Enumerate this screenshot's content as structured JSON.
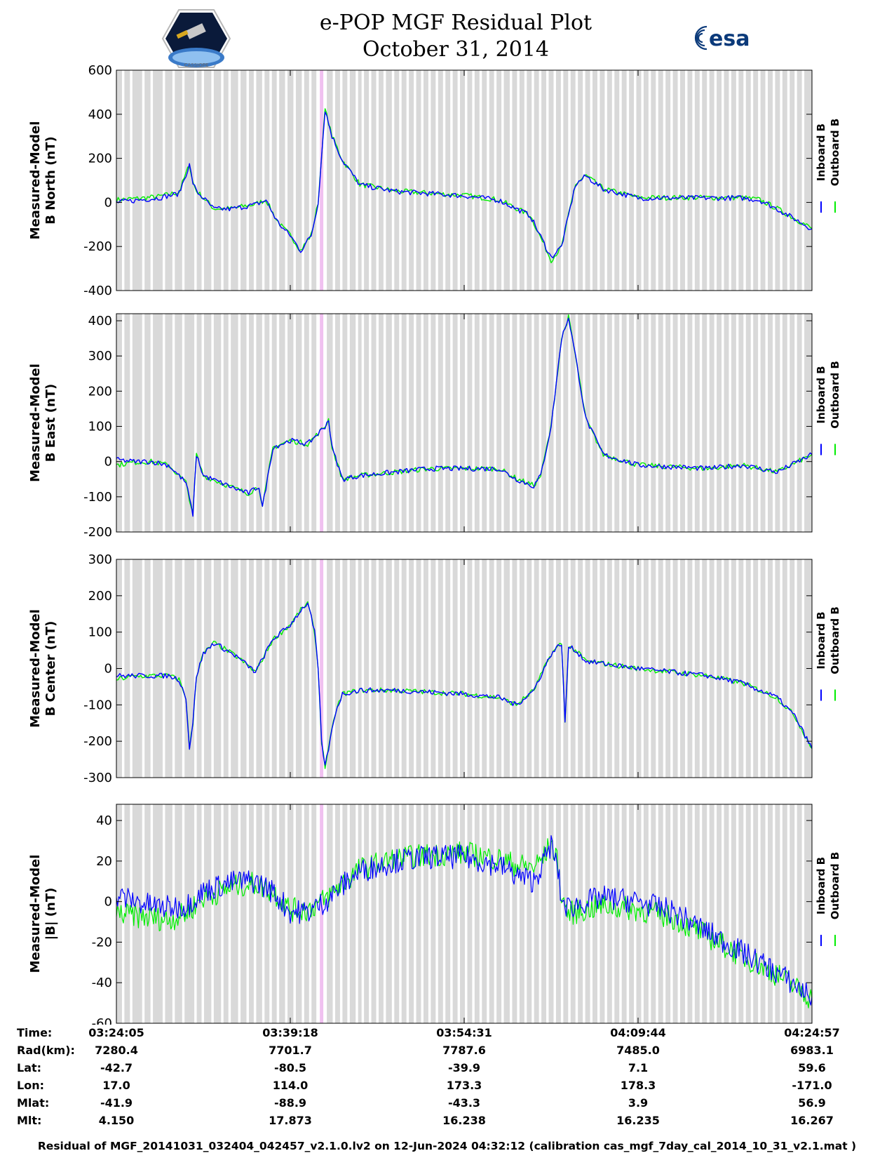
{
  "header": {
    "title": "e-POP MGF Residual Plot",
    "date": "October 31, 2014",
    "logo_left": "CASSIOPE",
    "logo_right": "esa"
  },
  "colors": {
    "inboard": "#0000ff",
    "outboard": "#00ee00",
    "gap_shading": "#d9d9d9",
    "highlight": "#f0c0f0"
  },
  "chart_data": [
    {
      "type": "line",
      "id": "north",
      "ylabel": [
        "Measured-Model",
        "B North (nT)"
      ],
      "ylim": [
        -400,
        600
      ],
      "yticks": [
        -400,
        -200,
        0,
        200,
        400,
        600
      ],
      "legend": [
        "Inboard B",
        "Outboard B"
      ],
      "series": [
        {
          "name": "Inboard B",
          "color": "#0000ff",
          "x": [
            0,
            6,
            12,
            18,
            21,
            22,
            23,
            25,
            28,
            33,
            40,
            43,
            46,
            48,
            50,
            53,
            56,
            57,
            58,
            60,
            62,
            65,
            70,
            80,
            100,
            110,
            119,
            125,
            128,
            132,
            135,
            140,
            150,
            160,
            180,
            185,
            190,
            200
          ],
          "y": [
            0,
            10,
            20,
            40,
            170,
            90,
            50,
            20,
            -30,
            -30,
            -10,
            10,
            -80,
            -120,
            -150,
            -220,
            -150,
            -80,
            0,
            420,
            300,
            190,
            80,
            50,
            30,
            10,
            -60,
            -250,
            -200,
            80,
            120,
            60,
            20,
            20,
            20,
            10,
            -30,
            -120
          ]
        },
        {
          "name": "Outboard B",
          "color": "#00ee00",
          "x": [
            0,
            6,
            12,
            18,
            21,
            22,
            23,
            25,
            28,
            33,
            40,
            43,
            46,
            48,
            50,
            53,
            56,
            57,
            58,
            60,
            62,
            65,
            70,
            80,
            100,
            110,
            119,
            125,
            128,
            132,
            135,
            140,
            150,
            160,
            180,
            185,
            190,
            200
          ],
          "y": [
            12,
            18,
            26,
            46,
            172,
            92,
            52,
            22,
            -28,
            -28,
            -8,
            12,
            -78,
            -118,
            -148,
            -218,
            -148,
            -78,
            2,
            422,
            302,
            192,
            82,
            52,
            32,
            12,
            -58,
            -262,
            -202,
            82,
            122,
            62,
            22,
            22,
            22,
            12,
            -28,
            -118
          ]
        }
      ]
    },
    {
      "type": "line",
      "id": "east",
      "ylabel": [
        "Measured-Model",
        "B East (nT)"
      ],
      "ylim": [
        -200,
        420
      ],
      "yticks": [
        -200,
        -100,
        0,
        100,
        200,
        300,
        400
      ],
      "legend": [
        "Inboard B",
        "Outboard B"
      ],
      "series": [
        {
          "name": "Inboard B",
          "color": "#0000ff",
          "x": [
            0,
            5,
            10,
            15,
            18,
            20,
            22,
            23,
            25,
            30,
            35,
            38,
            41,
            42,
            45,
            50,
            55,
            60,
            61,
            62,
            65,
            70,
            80,
            90,
            100,
            110,
            115,
            120,
            122,
            125,
            128,
            130,
            132,
            135,
            140,
            150,
            170,
            180,
            190,
            200
          ],
          "y": [
            5,
            0,
            0,
            -10,
            -40,
            -60,
            -150,
            20,
            -40,
            -60,
            -80,
            -90,
            -70,
            -130,
            40,
            60,
            50,
            100,
            120,
            40,
            -50,
            -40,
            -30,
            -20,
            -20,
            -20,
            -50,
            -70,
            -40,
            100,
            350,
            410,
            300,
            120,
            20,
            -10,
            -20,
            -10,
            -30,
            20
          ]
        },
        {
          "name": "Outboard B",
          "color": "#00ee00",
          "x": [
            0,
            5,
            10,
            15,
            18,
            20,
            22,
            23,
            25,
            30,
            35,
            38,
            41,
            42,
            45,
            50,
            55,
            60,
            61,
            62,
            65,
            70,
            80,
            90,
            100,
            110,
            115,
            120,
            122,
            125,
            128,
            130,
            132,
            135,
            140,
            150,
            170,
            180,
            190,
            200
          ],
          "y": [
            -10,
            -2,
            0,
            -10,
            -40,
            -60,
            -150,
            20,
            -40,
            -60,
            -80,
            -90,
            -70,
            -130,
            40,
            60,
            50,
            100,
            120,
            40,
            -50,
            -40,
            -30,
            -20,
            -20,
            -20,
            -48,
            -68,
            -40,
            100,
            350,
            410,
            300,
            120,
            20,
            -10,
            -20,
            -10,
            -30,
            20
          ]
        }
      ]
    },
    {
      "type": "line",
      "id": "center",
      "ylabel": [
        "Measured-Model",
        "B Center (nT)"
      ],
      "ylim": [
        -300,
        300
      ],
      "yticks": [
        -300,
        -200,
        -100,
        0,
        100,
        200,
        300
      ],
      "legend": [
        "Inboard B",
        "Outboard B"
      ],
      "series": [
        {
          "name": "Inboard B",
          "color": "#0000ff",
          "x": [
            0,
            5,
            10,
            15,
            18,
            20,
            21,
            22,
            23,
            25,
            28,
            30,
            35,
            40,
            45,
            50,
            53,
            55,
            57,
            58,
            59,
            60,
            61,
            63,
            65,
            70,
            80,
            100,
            110,
            115,
            120,
            125,
            128,
            129,
            130,
            132,
            135,
            150,
            170,
            180,
            190,
            195,
            200
          ],
          "y": [
            -20,
            -20,
            -20,
            -20,
            -30,
            -80,
            -220,
            -150,
            -20,
            40,
            70,
            60,
            30,
            -10,
            80,
            120,
            160,
            180,
            100,
            0,
            -200,
            -270,
            -220,
            -120,
            -70,
            -60,
            -60,
            -70,
            -80,
            -100,
            -60,
            40,
            70,
            -150,
            60,
            50,
            20,
            0,
            -20,
            -40,
            -80,
            -130,
            -220
          ]
        },
        {
          "name": "Outboard B",
          "color": "#00ee00",
          "x": [
            0,
            5,
            10,
            15,
            18,
            20,
            21,
            22,
            23,
            25,
            28,
            30,
            35,
            40,
            45,
            50,
            53,
            55,
            57,
            58,
            59,
            60,
            61,
            63,
            65,
            70,
            80,
            100,
            110,
            115,
            120,
            125,
            128,
            129,
            130,
            132,
            135,
            150,
            170,
            180,
            190,
            195,
            200
          ],
          "y": [
            -30,
            -22,
            -20,
            -20,
            -30,
            -80,
            -220,
            -150,
            -20,
            40,
            70,
            60,
            30,
            -10,
            80,
            120,
            160,
            180,
            100,
            0,
            -200,
            -270,
            -220,
            -120,
            -70,
            -60,
            -60,
            -70,
            -80,
            -100,
            -60,
            40,
            70,
            -150,
            60,
            50,
            20,
            0,
            -20,
            -40,
            -80,
            -130,
            -220
          ]
        }
      ]
    },
    {
      "type": "line",
      "id": "total",
      "ylabel": [
        "Measured-Model",
        "|B| (nT)"
      ],
      "ylim": [
        -60,
        48
      ],
      "yticks": [
        -60,
        -40,
        -20,
        0,
        20,
        40
      ],
      "legend": [
        "Inboard B",
        "Outboard B"
      ],
      "series": [
        {
          "name": "Inboard B",
          "color": "#0000ff",
          "x": [
            0,
            10,
            15,
            20,
            25,
            30,
            35,
            40,
            45,
            50,
            55,
            60,
            65,
            70,
            80,
            90,
            100,
            110,
            115,
            120,
            123,
            125,
            127,
            128,
            130,
            135,
            140,
            150,
            160,
            170,
            180,
            190,
            200
          ],
          "y": [
            3,
            -2,
            -3,
            -2,
            5,
            8,
            10,
            10,
            5,
            -5,
            -5,
            0,
            8,
            15,
            20,
            22,
            22,
            18,
            13,
            10,
            20,
            28,
            15,
            0,
            -3,
            0,
            2,
            0,
            -5,
            -15,
            -25,
            -35,
            -47
          ]
        },
        {
          "name": "Outboard B",
          "color": "#00ee00",
          "x": [
            0,
            10,
            15,
            20,
            25,
            30,
            35,
            40,
            45,
            50,
            55,
            60,
            65,
            70,
            80,
            90,
            100,
            110,
            115,
            120,
            123,
            125,
            127,
            128,
            130,
            135,
            140,
            150,
            160,
            170,
            180,
            190,
            200
          ],
          "y": [
            -6,
            -8,
            -9,
            -6,
            2,
            5,
            8,
            9,
            5,
            -4,
            -4,
            1,
            9,
            16,
            21,
            23,
            24,
            21,
            18,
            17,
            22,
            29,
            18,
            2,
            -6,
            -4,
            -2,
            -4,
            -8,
            -17,
            -27,
            -36,
            -48
          ]
        }
      ]
    }
  ],
  "gap_bands": [
    [
      0,
      1.6
    ],
    [
      2.3,
      3.9
    ],
    [
      4.6,
      7.4
    ],
    [
      8.1,
      9.8
    ],
    [
      10.5,
      13.3
    ],
    [
      14.0,
      16.1
    ],
    [
      16.8,
      18.9
    ],
    [
      19.6,
      22.4
    ],
    [
      23.1,
      24.5
    ],
    [
      25.2,
      27.3
    ],
    [
      28.0,
      30.1
    ],
    [
      30.8,
      32.2
    ],
    [
      32.9,
      35.0
    ],
    [
      35.7,
      37.4
    ],
    [
      38.1,
      39.5
    ],
    [
      40.2,
      41.9
    ],
    [
      42.6,
      44.0
    ],
    [
      44.7,
      46.1
    ],
    [
      46.8,
      48.5
    ],
    [
      49.2,
      50.9
    ],
    [
      51.6,
      53.3
    ],
    [
      54.0,
      55.4
    ],
    [
      56.1,
      57.5
    ],
    [
      60.5,
      62.2
    ],
    [
      62.9,
      64.3
    ],
    [
      65.0,
      66.4
    ],
    [
      67.1,
      68.8
    ],
    [
      69.5,
      70.5
    ],
    [
      71.2,
      72.6
    ],
    [
      73.3,
      74.7
    ],
    [
      75.4,
      76.8
    ],
    [
      77.5,
      79.2
    ],
    [
      79.9,
      81.3
    ],
    [
      82.0,
      83.4
    ],
    [
      84.1,
      85.5
    ],
    [
      86.2,
      87.6
    ],
    [
      88.3,
      89.7
    ],
    [
      90.4,
      91.8
    ],
    [
      92.5,
      93.9
    ],
    [
      94.6,
      96.0
    ],
    [
      96.7,
      98.1
    ],
    [
      98.8,
      100.2
    ],
    [
      100.9,
      102.3
    ],
    [
      103.0,
      104.4
    ],
    [
      105.1,
      106.5
    ],
    [
      107.2,
      108.6
    ],
    [
      109.3,
      110.7
    ],
    [
      111.4,
      113.1
    ],
    [
      113.8,
      115.2
    ],
    [
      115.9,
      117.3
    ],
    [
      118.0,
      119.4
    ],
    [
      120.1,
      121.5
    ],
    [
      122.2,
      123.6
    ],
    [
      124.3,
      125.7
    ],
    [
      126.4,
      127.8
    ],
    [
      128.5,
      129.9
    ],
    [
      130.6,
      132.0
    ],
    [
      132.7,
      134.1
    ],
    [
      134.8,
      136.2
    ],
    [
      136.9,
      138.3
    ],
    [
      139.0,
      140.4
    ],
    [
      141.1,
      142.5
    ],
    [
      143.2,
      144.6
    ],
    [
      145.3,
      146.7
    ],
    [
      147.4,
      148.8
    ],
    [
      149.5,
      150.9
    ],
    [
      151.6,
      153.0
    ],
    [
      153.7,
      155.1
    ],
    [
      155.8,
      157.2
    ],
    [
      157.9,
      159.3
    ],
    [
      160.0,
      161.4
    ],
    [
      162.1,
      163.5
    ],
    [
      164.2,
      165.6
    ],
    [
      166.3,
      167.7
    ],
    [
      168.4,
      169.8
    ],
    [
      170.5,
      171.9
    ],
    [
      172.6,
      174.0
    ],
    [
      174.7,
      176.1
    ],
    [
      176.8,
      178.2
    ],
    [
      178.9,
      180.3
    ],
    [
      181.0,
      182.4
    ],
    [
      183.1,
      184.5
    ],
    [
      185.2,
      186.6
    ],
    [
      187.3,
      188.7
    ],
    [
      189.4,
      190.8
    ],
    [
      191.5,
      192.9
    ],
    [
      193.6,
      195.0
    ],
    [
      195.7,
      197.1
    ],
    [
      197.8,
      200
    ]
  ],
  "highlight_band": [
    58.5,
    59.5
  ],
  "stats": {
    "labels": [
      "Time:",
      "Rad(km):",
      "Lat:",
      "Lon:",
      "Mlat:",
      "Mlt:"
    ],
    "columns": [
      [
        "03:24:05",
        "7280.4",
        "-42.7",
        "17.0",
        "-41.9",
        "4.150"
      ],
      [
        "03:39:18",
        "7701.7",
        "-80.5",
        "114.0",
        "-88.9",
        "17.873"
      ],
      [
        "03:54:31",
        "7787.6",
        "-39.9",
        "173.3",
        "-43.3",
        "16.238"
      ],
      [
        "04:09:44",
        "7485.0",
        "7.1",
        "178.3",
        "3.9",
        "16.235"
      ],
      [
        "04:24:57",
        "6983.1",
        "59.6",
        "-171.0",
        "56.9",
        "16.267"
      ]
    ]
  },
  "footer": "Residual of MGF_20141031_032404_042457_v2.1.0.lv2 on 12-Jun-2024 04:32:12 (calibration cas_mgf_7day_cal_2014_10_31_v2.1.mat )"
}
